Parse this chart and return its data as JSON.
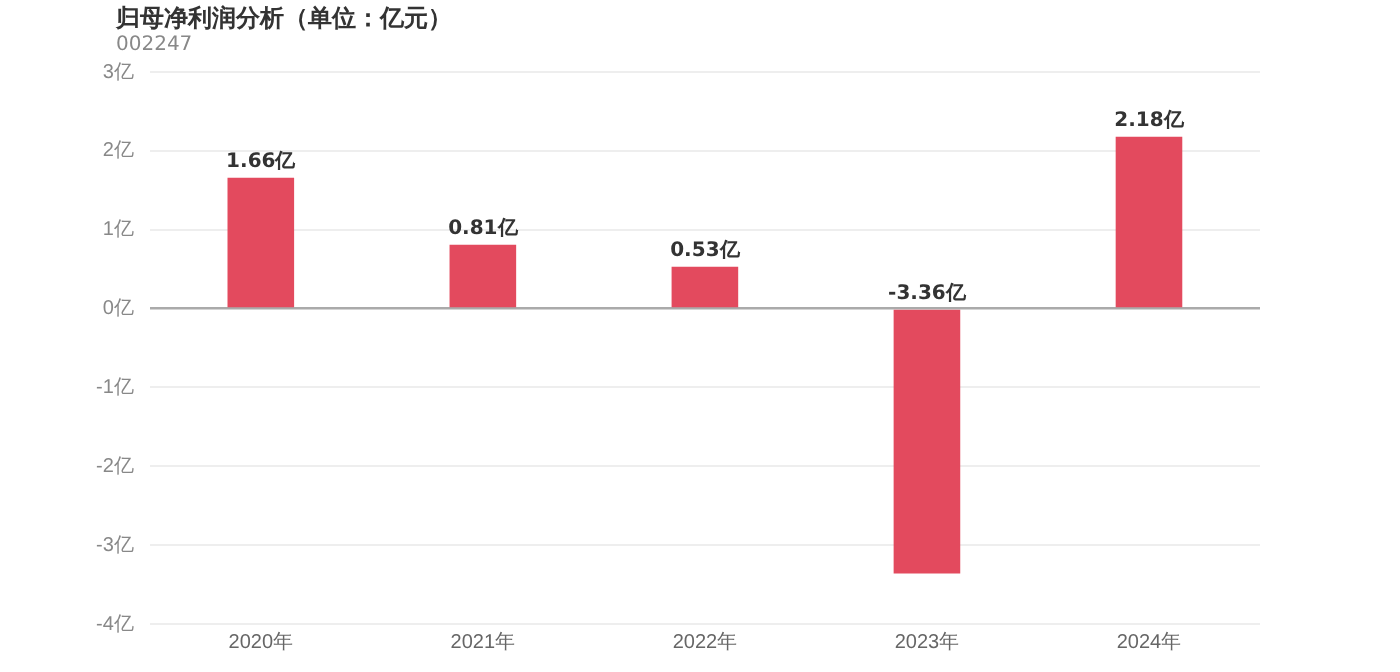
{
  "chart_data": {
    "type": "bar",
    "title": "归母净利润分析（单位：亿元）",
    "subtitle": "002247",
    "categories": [
      "2020年",
      "2021年",
      "2022年",
      "2023年",
      "2024年"
    ],
    "values": [
      1.66,
      0.81,
      0.53,
      -3.36,
      2.18
    ],
    "value_labels": [
      "1.66亿",
      "0.81亿",
      "0.53亿",
      "-3.36亿",
      "2.18亿"
    ],
    "color": "#e34a5e",
    "ylim": [
      -4,
      3
    ],
    "yticks": [
      {
        "value": -4,
        "label": "-4亿"
      },
      {
        "value": -3,
        "label": "-3亿"
      },
      {
        "value": -2,
        "label": "-2亿"
      },
      {
        "value": -1,
        "label": "-1亿"
      },
      {
        "value": 0,
        "label": "0亿"
      },
      {
        "value": 1,
        "label": "1亿"
      },
      {
        "value": 2,
        "label": "2亿"
      },
      {
        "value": 3,
        "label": "3亿"
      }
    ],
    "grid": "y",
    "legend": false
  }
}
